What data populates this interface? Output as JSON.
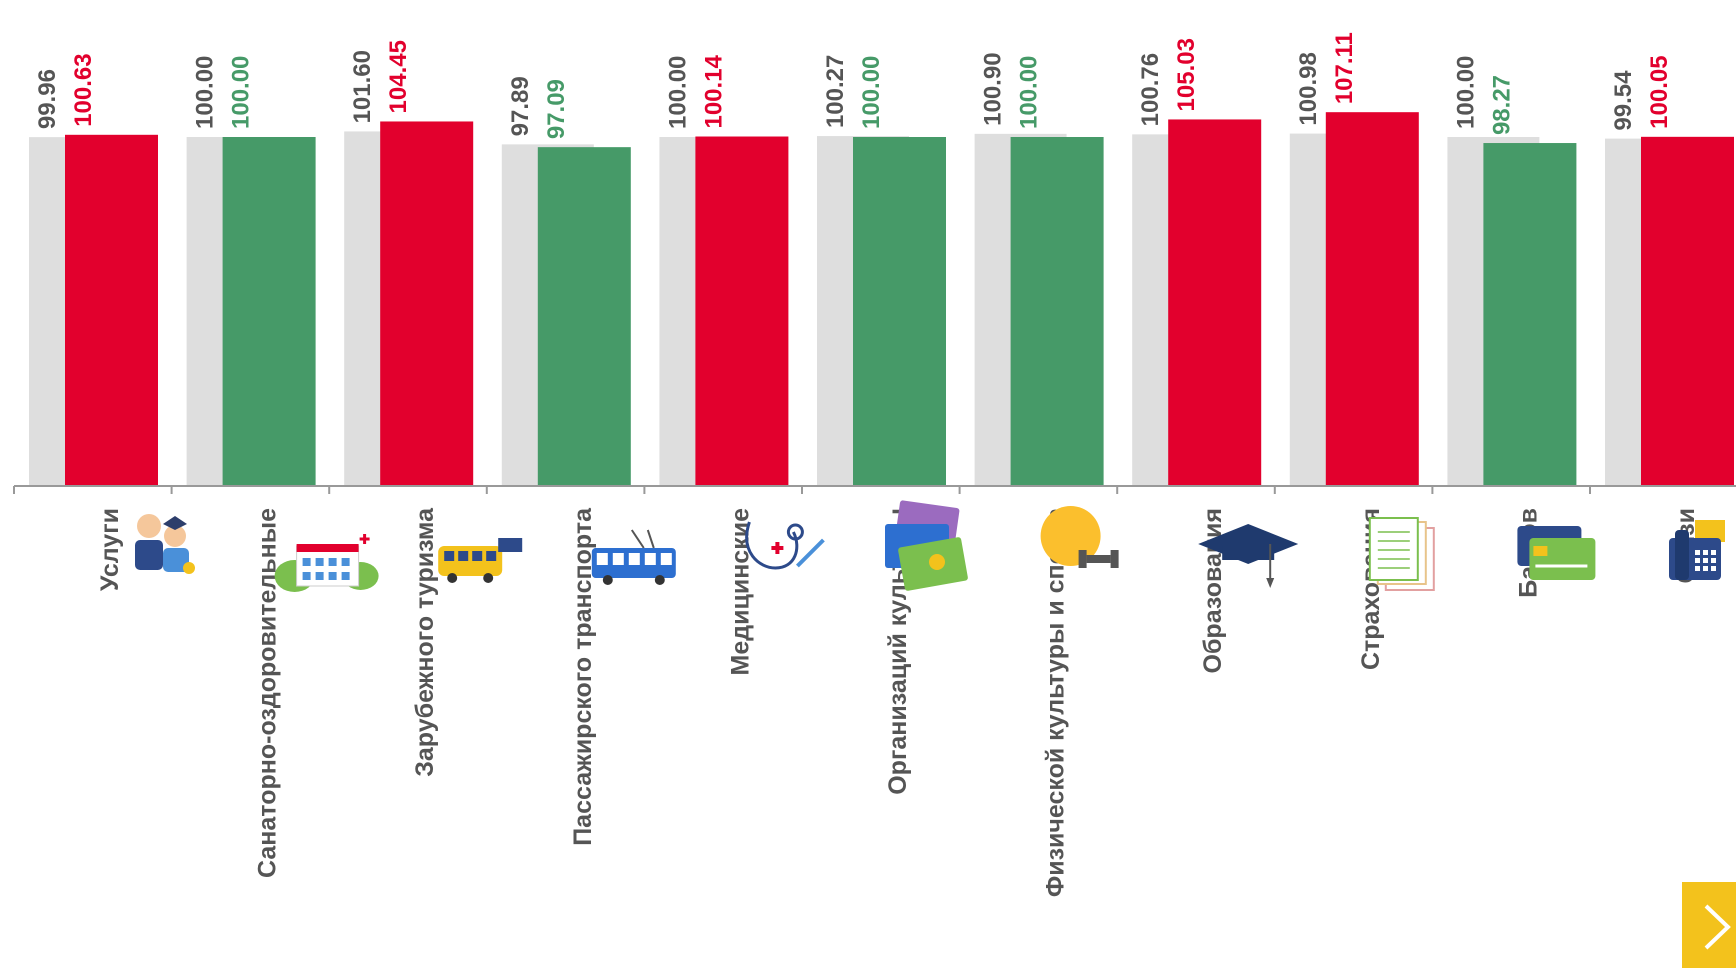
{
  "colors": {
    "previous": "#dedede",
    "up": "#e2002d",
    "down": "#469a68",
    "previous_label": "#555555",
    "axis": "#999999",
    "nav_button": "#f3c21c"
  },
  "chart_data": {
    "type": "bar",
    "title": "",
    "xlabel": "",
    "ylabel": "",
    "ylim": [
      0,
      108
    ],
    "categories": [
      "Услуги",
      "Санаторно-оздоровительные",
      "Зарубежного туризма",
      "Пассажирского транспорта",
      "Медицинские",
      "Организаций культуры",
      "Физической культуры и спорта",
      "Образования",
      "Страхования",
      "Банков",
      "Связи"
    ],
    "icons": [
      "services-icon",
      "sanatorium-icon",
      "tour-bus-icon",
      "trolleybus-icon",
      "stethoscope-icon",
      "tickets-icon",
      "dumbbell-icon",
      "graduation-cap-icon",
      "documents-icon",
      "credit-cards-icon",
      "phone-icon"
    ],
    "series": [
      {
        "values": [
          99.96,
          100.0,
          101.6,
          97.89,
          100.0,
          100.27,
          100.9,
          100.76,
          100.98,
          100.0,
          99.54
        ],
        "labels": [
          "99.96",
          "100.00",
          "101.60",
          "97.89",
          "100.00",
          "100.27",
          "100.90",
          "100.76",
          "100.98",
          "100.00",
          "99.54"
        ]
      },
      {
        "values": [
          100.63,
          100.0,
          104.45,
          97.09,
          100.14,
          100.0,
          100.0,
          105.03,
          107.11,
          98.27,
          100.05
        ],
        "labels": [
          "100.63",
          "100.00",
          "104.45",
          "97.09",
          "100.14",
          "100.00",
          "100.00",
          "105.03",
          "107.11",
          "98.27",
          "100.05"
        ],
        "colors": [
          "up",
          "down",
          "up",
          "down",
          "up",
          "down",
          "down",
          "up",
          "up",
          "down",
          "up"
        ]
      }
    ],
    "grid": false,
    "legend": "none"
  }
}
